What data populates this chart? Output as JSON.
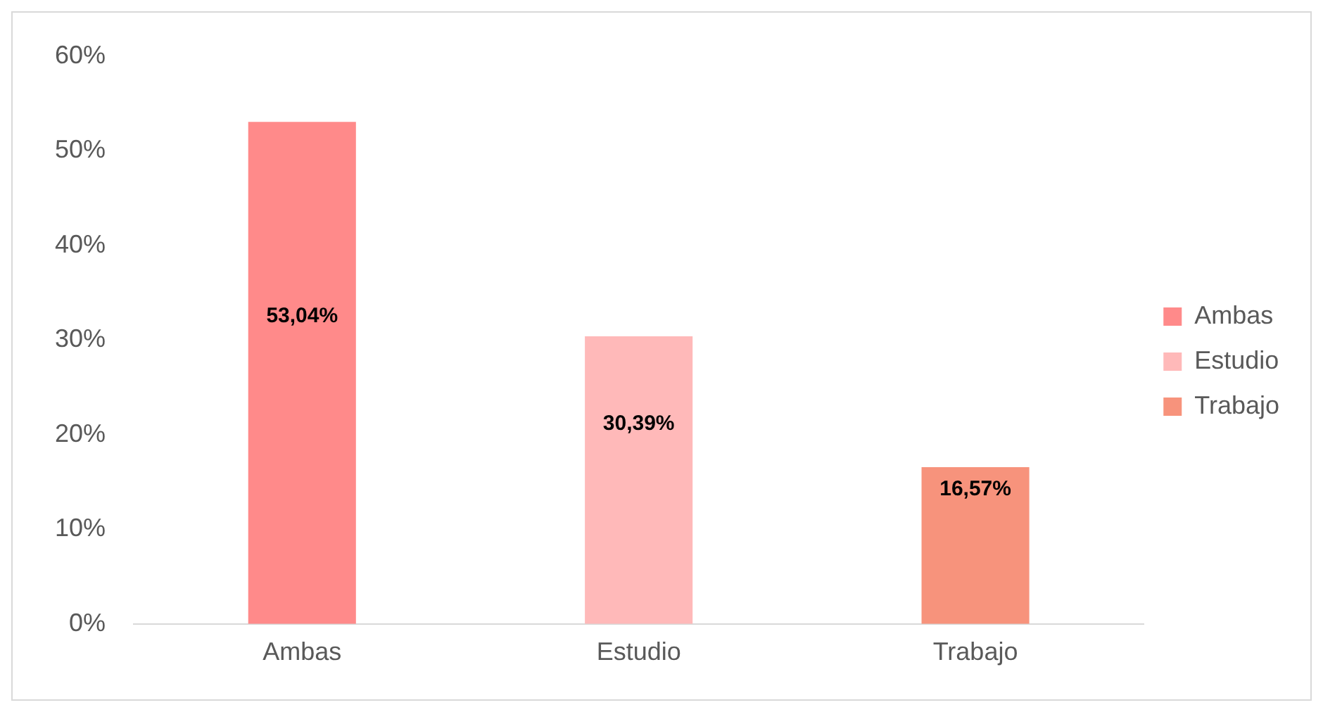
{
  "chart_data": {
    "type": "bar",
    "categories": [
      "Ambas",
      "Estudio",
      "Trabajo"
    ],
    "series": [
      {
        "name": "Ambas",
        "color": "#ff8a8a",
        "values": [
          53.04,
          null,
          null
        ],
        "value_labels": [
          "53,04%",
          null,
          null
        ]
      },
      {
        "name": "Estudio",
        "color": "#ffb9b9",
        "values": [
          null,
          30.39,
          null
        ],
        "value_labels": [
          null,
          "30,39%",
          null
        ]
      },
      {
        "name": "Trabajo",
        "color": "#f7937c",
        "values": [
          null,
          null,
          16.57
        ],
        "value_labels": [
          null,
          null,
          "16,57%"
        ]
      }
    ],
    "ylim": [
      0,
      60
    ],
    "yticks": [
      {
        "value": 0,
        "label": "0%"
      },
      {
        "value": 10,
        "label": "10%"
      },
      {
        "value": 20,
        "label": "20%"
      },
      {
        "value": 30,
        "label": "30%"
      },
      {
        "value": 40,
        "label": "40%"
      },
      {
        "value": 50,
        "label": "50%"
      },
      {
        "value": 60,
        "label": "60%"
      }
    ],
    "grid": false,
    "legend": "right"
  }
}
